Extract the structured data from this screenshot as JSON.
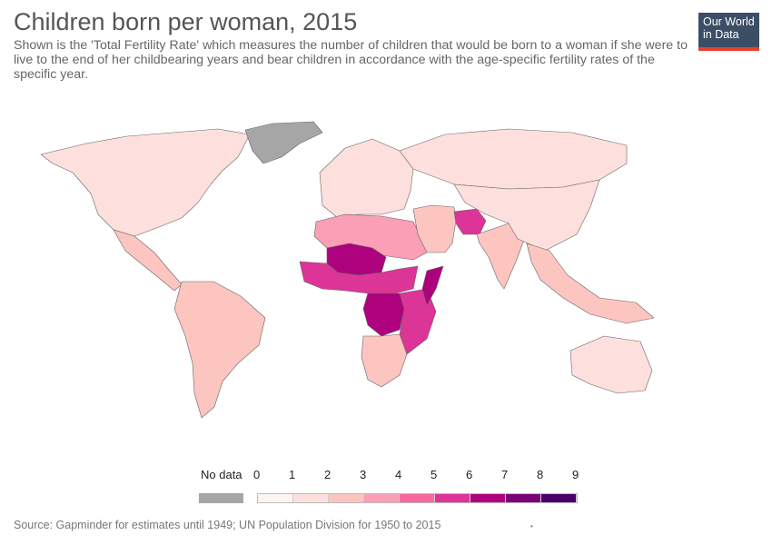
{
  "header": {
    "title": "Children born per woman, 2015",
    "subtitle": "Shown is the 'Total Fertility Rate' which measures the number of children that would be born to a woman if she were to live to the end of her childbearing years and bear children in accordance with the age-specific fertility rates of the specific year."
  },
  "logo": {
    "line1": "Our World",
    "line2": "in Data"
  },
  "legend": {
    "no_data_label": "No data",
    "no_data_color": "#a6a6a6",
    "ticks": [
      "0",
      "1",
      "2",
      "3",
      "4",
      "5",
      "6",
      "7",
      "8",
      "9"
    ],
    "bin_colors": [
      "#fff5f0",
      "#fde0dd",
      "#fcc5c0",
      "#fa9fb5",
      "#f768a1",
      "#dd3497",
      "#ae017e",
      "#7a0177",
      "#49006a"
    ]
  },
  "map": {
    "regions": [
      {
        "name": "North America",
        "value": 1.8
      },
      {
        "name": "Greenland",
        "value": null
      },
      {
        "name": "Central America",
        "value": 2.4
      },
      {
        "name": "South America",
        "value": 2.0
      },
      {
        "name": "Europe",
        "value": 1.6
      },
      {
        "name": "Russia",
        "value": 1.7
      },
      {
        "name": "North Africa",
        "value": 3.0
      },
      {
        "name": "Sahel",
        "value": 6.5
      },
      {
        "name": "Central Africa",
        "value": 5.5
      },
      {
        "name": "DR Congo",
        "value": 6.0
      },
      {
        "name": "East Africa",
        "value": 5.0
      },
      {
        "name": "Somalia",
        "value": 6.5
      },
      {
        "name": "Southern Africa",
        "value": 2.7
      },
      {
        "name": "Middle East",
        "value": 2.8
      },
      {
        "name": "Afghanistan",
        "value": 5.0
      },
      {
        "name": "India",
        "value": 2.4
      },
      {
        "name": "China",
        "value": 1.6
      },
      {
        "name": "Southeast Asia",
        "value": 2.3
      },
      {
        "name": "Australia",
        "value": 1.8
      }
    ]
  },
  "footer": {
    "source": "Source: Gapminder for estimates until 1949; UN Population Division for 1950 to 2015",
    "dot": "•"
  }
}
